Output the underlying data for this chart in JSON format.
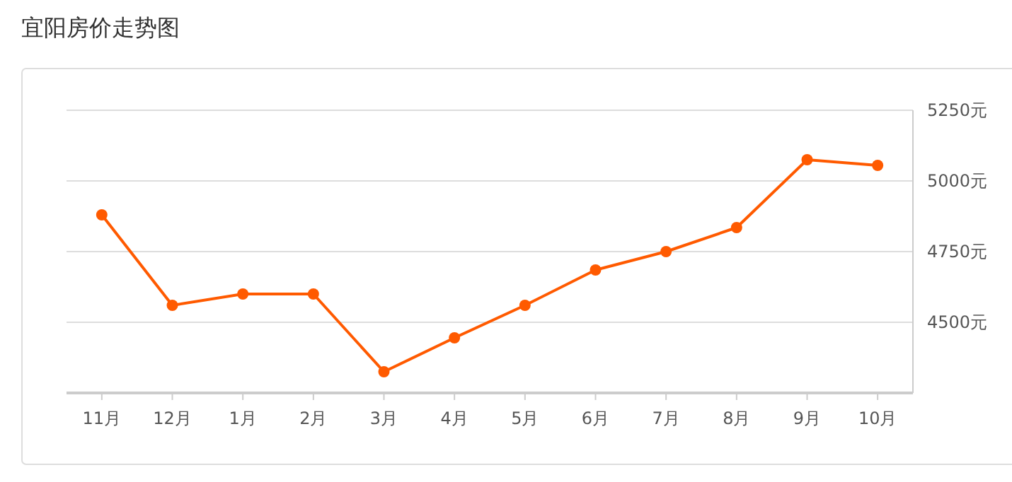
{
  "chart_data": {
    "type": "line",
    "title": "宜阳房价走势图",
    "categories": [
      "11月",
      "12月",
      "1月",
      "2月",
      "3月",
      "4月",
      "5月",
      "6月",
      "7月",
      "8月",
      "9月",
      "10月"
    ],
    "series": [
      {
        "color": "#ff5a00",
        "values": [
          4880,
          4560,
          4600,
          4600,
          4325,
          4445,
          4560,
          4685,
          4750,
          4835,
          5075,
          5055
        ]
      }
    ],
    "ylim": [
      4250,
      5250
    ],
    "yticks": [
      {
        "value": 4500,
        "label": "4500元"
      },
      {
        "value": 4750,
        "label": "4750元"
      },
      {
        "value": 5000,
        "label": "5000元"
      },
      {
        "value": 5250,
        "label": "5250元"
      }
    ],
    "grid": "y",
    "marker": "circle",
    "line_style": "solid"
  }
}
